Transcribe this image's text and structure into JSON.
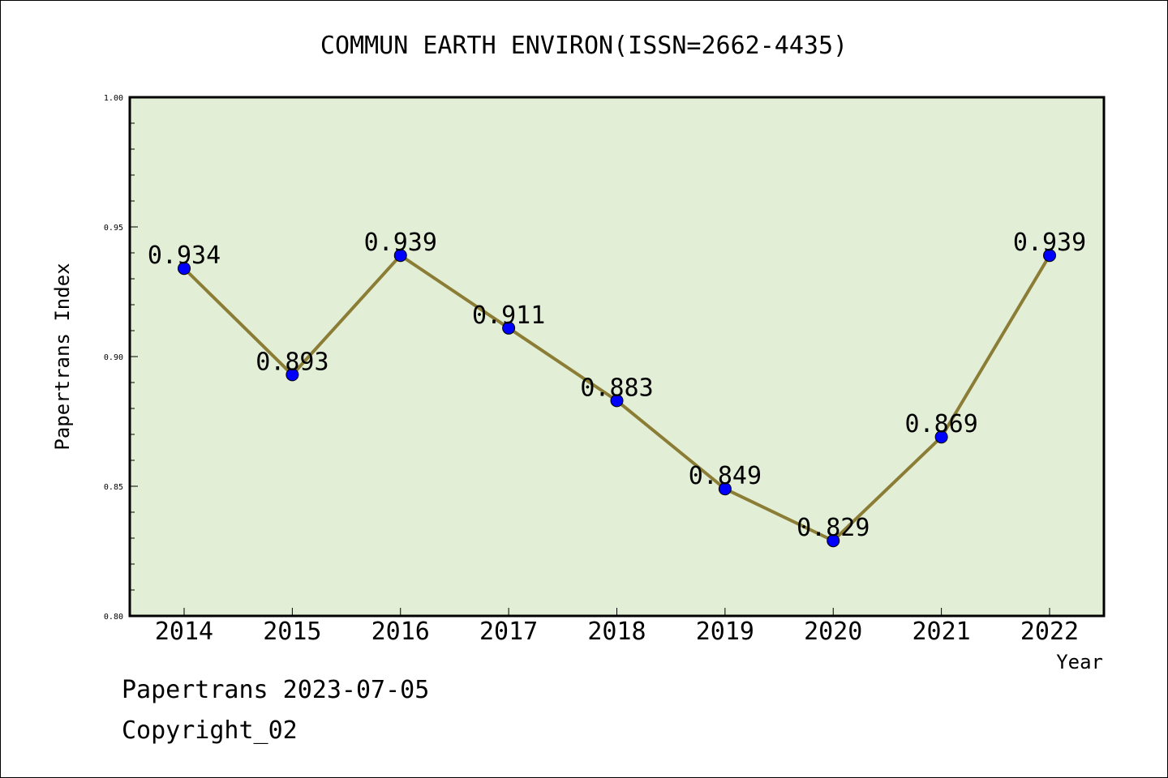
{
  "chart_data": {
    "type": "line",
    "title": "COMMUN EARTH ENVIRON(ISSN=2662-4435)",
    "xlabel": "Year",
    "ylabel": "Papertrans Index",
    "categories": [
      "2014",
      "2015",
      "2016",
      "2017",
      "2018",
      "2019",
      "2020",
      "2021",
      "2022"
    ],
    "series": [
      {
        "values": [
          0.934,
          0.893,
          0.939,
          0.911,
          0.883,
          0.849,
          0.829,
          0.869,
          0.939
        ],
        "data_labels": [
          "0.934",
          "0.893",
          "0.939",
          "0.911",
          "0.883",
          "0.849",
          "0.829",
          "0.869",
          "0.939"
        ]
      }
    ],
    "ylim": [
      0.8,
      1.0
    ],
    "yticks": [
      "0.80",
      "0.85",
      "0.90",
      "0.95",
      "1.00"
    ],
    "grid": false,
    "colors": {
      "plot_background": "#e2efd6",
      "line": "#8b7d35",
      "marker": "#0000ff"
    }
  },
  "footer": {
    "line1": "Papertrans 2023-07-05",
    "line2": "Copyright_02"
  }
}
